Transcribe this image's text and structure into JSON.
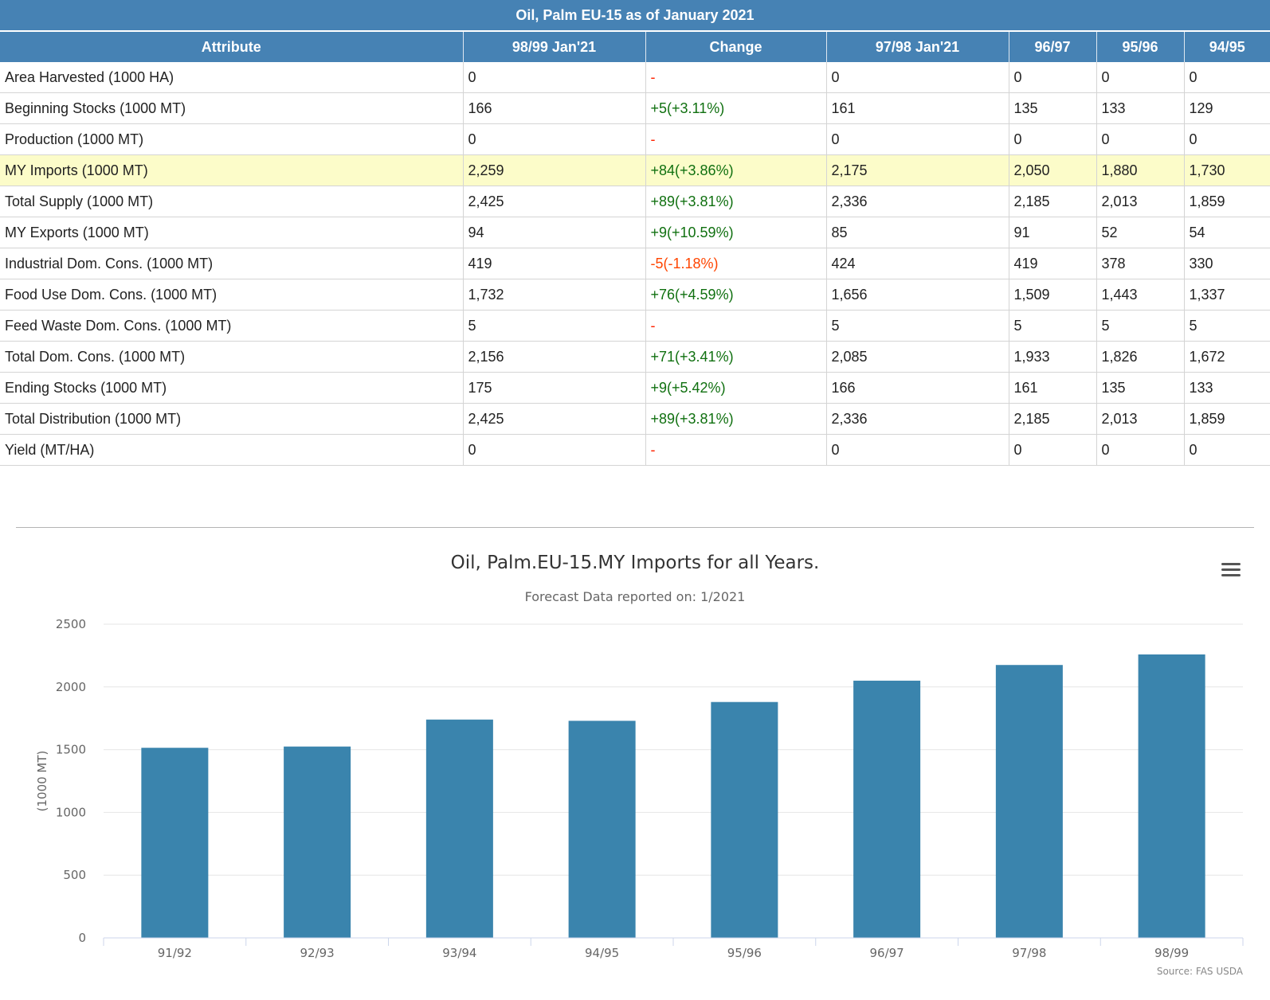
{
  "table": {
    "title": "Oil, Palm EU-15 as of January 2021",
    "columns": [
      "Attribute",
      "98/99 Jan'21",
      "Change",
      "97/98 Jan'21",
      "96/97",
      "95/96",
      "94/95"
    ],
    "rows": [
      {
        "attribute": "Area Harvested (1000 HA)",
        "c1": "0",
        "change": "-",
        "change_type": "none",
        "c3": "0",
        "c4": "0",
        "c5": "0",
        "c6": "0"
      },
      {
        "attribute": "Beginning Stocks (1000 MT)",
        "c1": "166",
        "change": "+5(+3.11%)",
        "change_type": "pos",
        "c3": "161",
        "c4": "135",
        "c5": "133",
        "c6": "129"
      },
      {
        "attribute": "Production (1000 MT)",
        "c1": "0",
        "change": "-",
        "change_type": "none",
        "c3": "0",
        "c4": "0",
        "c5": "0",
        "c6": "0"
      },
      {
        "attribute": "MY Imports (1000 MT)",
        "c1": "2,259",
        "change": "+84(+3.86%)",
        "change_type": "pos",
        "c3": "2,175",
        "c4": "2,050",
        "c5": "1,880",
        "c6": "1,730",
        "highlighted": true
      },
      {
        "attribute": "Total Supply (1000 MT)",
        "c1": "2,425",
        "change": "+89(+3.81%)",
        "change_type": "pos",
        "c3": "2,336",
        "c4": "2,185",
        "c5": "2,013",
        "c6": "1,859"
      },
      {
        "attribute": "MY Exports (1000 MT)",
        "c1": "94",
        "change": "+9(+10.59%)",
        "change_type": "pos",
        "c3": "85",
        "c4": "91",
        "c5": "52",
        "c6": "54"
      },
      {
        "attribute": "Industrial Dom. Cons. (1000 MT)",
        "c1": "419",
        "change": "-5(-1.18%)",
        "change_type": "neg",
        "c3": "424",
        "c4": "419",
        "c5": "378",
        "c6": "330"
      },
      {
        "attribute": "Food Use Dom. Cons. (1000 MT)",
        "c1": "1,732",
        "change": "+76(+4.59%)",
        "change_type": "pos",
        "c3": "1,656",
        "c4": "1,509",
        "c5": "1,443",
        "c6": "1,337"
      },
      {
        "attribute": "Feed Waste Dom. Cons. (1000 MT)",
        "c1": "5",
        "change": "-",
        "change_type": "none",
        "c3": "5",
        "c4": "5",
        "c5": "5",
        "c6": "5"
      },
      {
        "attribute": "Total Dom. Cons. (1000 MT)",
        "c1": "2,156",
        "change": "+71(+3.41%)",
        "change_type": "pos",
        "c3": "2,085",
        "c4": "1,933",
        "c5": "1,826",
        "c6": "1,672"
      },
      {
        "attribute": "Ending Stocks (1000 MT)",
        "c1": "175",
        "change": "+9(+5.42%)",
        "change_type": "pos",
        "c3": "166",
        "c4": "161",
        "c5": "135",
        "c6": "133"
      },
      {
        "attribute": "Total Distribution (1000 MT)",
        "c1": "2,425",
        "change": "+89(+3.81%)",
        "change_type": "pos",
        "c3": "2,336",
        "c4": "2,185",
        "c5": "2,013",
        "c6": "1,859"
      },
      {
        "attribute": "Yield (MT/HA)",
        "c1": "0",
        "change": "-",
        "change_type": "none",
        "c3": "0",
        "c4": "0",
        "c5": "0",
        "c6": "0"
      }
    ]
  },
  "colors": {
    "header_bg": "#4682b4",
    "highlight_row": "#fcfcc9",
    "positive_change": "#107010",
    "negative_change": "#ff4500",
    "bar": "#3a84ad"
  },
  "chart_menu_icon": "hamburger-menu-icon",
  "chart_data": {
    "type": "bar",
    "title": "Oil, Palm.EU-15.MY Imports for all Years.",
    "subtitle": "Forecast Data reported on: 1/2021",
    "categories": [
      "91/92",
      "92/93",
      "93/94",
      "94/95",
      "95/96",
      "96/97",
      "97/98",
      "98/99"
    ],
    "values": [
      1515,
      1525,
      1740,
      1730,
      1880,
      2050,
      2175,
      2259
    ],
    "ylabel": "(1000 MT)",
    "xlabel": "",
    "ylim": [
      0,
      2500
    ],
    "yticks": [
      "0",
      "500",
      "1000",
      "1500",
      "2000",
      "2500"
    ],
    "grid": true,
    "legend": false,
    "credits": "Source: FAS USDA"
  }
}
